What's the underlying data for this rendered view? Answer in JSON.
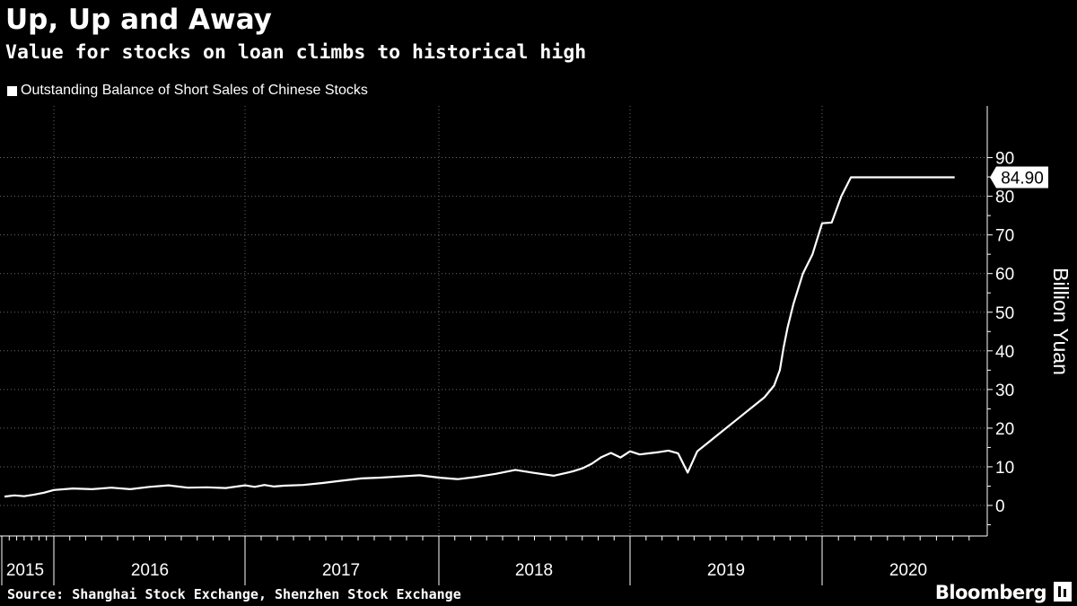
{
  "header": {
    "title": "Up, Up and Away",
    "subtitle": "Value for stocks on loan climbs to historical high"
  },
  "legend": {
    "label": "Outstanding Balance of Short Sales of Chinese Stocks",
    "color": "#ffffff"
  },
  "footer": {
    "source": "Source: Shanghai Stock Exchange, Shenzhen Stock Exchange",
    "brand": "Bloomberg"
  },
  "chart_data": {
    "type": "line",
    "ylabel": "Billion Yuan",
    "xlabel": "",
    "ylim": [
      -7,
      92
    ],
    "yticks": [
      0,
      10,
      20,
      30,
      40,
      50,
      60,
      70,
      80,
      90
    ],
    "x_range": [
      2015.0,
      2020.75
    ],
    "year_labels": [
      "2015",
      "2016",
      "2017",
      "2018",
      "2019",
      "2020"
    ],
    "grid": true,
    "background": "#000000",
    "line_color": "#ffffff",
    "last_value_label": "84.90",
    "series": [
      {
        "name": "Outstanding Balance of Short Sales of Chinese Stocks",
        "x": [
          2015.0,
          2015.05,
          2015.1,
          2015.15,
          2015.2,
          2015.25,
          2015.3,
          2015.4,
          2015.5,
          2015.6,
          2015.7,
          2015.8,
          2015.9,
          2016.0,
          2016.1,
          2016.2,
          2016.3,
          2016.4,
          2016.5,
          2016.6,
          2016.7,
          2016.8,
          2016.9,
          2017.0,
          2017.05,
          2017.1,
          2017.15,
          2017.2,
          2017.3,
          2017.4,
          2017.5,
          2017.6,
          2017.7,
          2017.8,
          2017.9,
          2018.0,
          2018.1,
          2018.2,
          2018.3,
          2018.4,
          2018.5,
          2018.6,
          2018.7,
          2018.75,
          2018.8,
          2018.85,
          2018.9,
          2018.95,
          2019.0,
          2019.05,
          2019.1,
          2019.15,
          2019.2,
          2019.25,
          2019.3,
          2019.35,
          2019.4,
          2019.45,
          2019.5,
          2019.55,
          2019.6,
          2019.65,
          2019.7,
          2019.75,
          2019.78,
          2019.8,
          2019.82,
          2019.85,
          2019.9,
          2019.95,
          2020.0,
          2020.05,
          2020.1,
          2020.15,
          2020.2,
          2020.25,
          2020.3,
          2020.35,
          2020.4,
          2020.45,
          2020.5,
          2020.55,
          2020.6,
          2020.63,
          2020.66,
          2020.69
        ],
        "values": [
          2.9,
          2.8,
          3.0,
          3.1,
          3.0,
          3.2,
          3.0,
          2.0,
          2.3,
          2.6,
          2.4,
          2.8,
          3.3,
          4.0,
          4.4,
          4.2,
          4.6,
          4.2,
          4.8,
          5.2,
          4.6,
          4.7,
          4.5,
          5.2,
          4.8,
          5.3,
          4.9,
          5.1,
          5.3,
          5.8,
          6.4,
          7.0,
          7.2,
          7.5,
          7.8,
          7.2,
          6.8,
          7.4,
          8.2,
          9.2,
          8.4,
          7.7,
          8.8,
          9.6,
          10.8,
          12.5,
          13.6,
          12.4,
          14.0,
          13.2,
          13.5,
          13.8,
          14.2,
          13.5,
          8.5,
          14.0,
          16.0,
          18.0,
          20.0,
          22.0,
          24.0,
          26.0,
          28.0,
          31.0,
          35.0,
          41.0,
          46.0,
          52.0,
          60.0,
          65.0,
          73.0,
          73.2,
          80.0,
          84.9,
          84.9,
          84.9,
          84.9,
          84.9,
          84.9,
          84.9,
          84.9,
          84.9,
          84.9,
          84.9,
          84.9,
          84.9
        ]
      }
    ]
  }
}
